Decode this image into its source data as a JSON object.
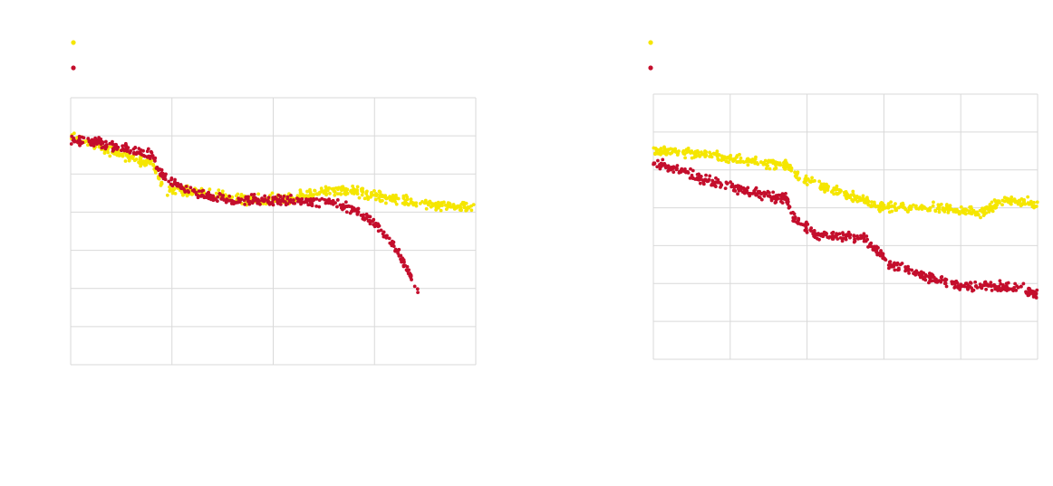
{
  "chart_data": [
    {
      "type": "scatter",
      "title": "",
      "xlabel": "",
      "ylabel": "",
      "xlim": [
        0,
        100
      ],
      "ylim": [
        0,
        7
      ],
      "x_gridlines": 4,
      "y_gridlines": 7,
      "grid": true,
      "legend": "top-left",
      "series": [
        {
          "name": "",
          "color": "#f5e600",
          "key_points": [
            [
              0,
              6.0
            ],
            [
              10,
              5.6
            ],
            [
              20,
              5.25
            ],
            [
              23,
              4.6
            ],
            [
              30,
              4.55
            ],
            [
              45,
              4.3
            ],
            [
              55,
              4.4
            ],
            [
              67,
              4.6
            ],
            [
              85,
              4.25
            ],
            [
              100,
              4.1
            ]
          ]
        },
        {
          "name": "",
          "color": "#c40e2c",
          "key_points": [
            [
              0,
              5.9
            ],
            [
              8,
              5.8
            ],
            [
              20,
              5.5
            ],
            [
              22,
              5.0
            ],
            [
              30,
              4.5
            ],
            [
              40,
              4.3
            ],
            [
              55,
              4.3
            ],
            [
              65,
              4.25
            ],
            [
              72,
              3.95
            ],
            [
              76,
              3.6
            ],
            [
              80,
              3.1
            ],
            [
              86,
              1.9
            ]
          ]
        }
      ]
    },
    {
      "type": "scatter",
      "title": "",
      "xlabel": "",
      "ylabel": "",
      "xlim": [
        0,
        100
      ],
      "ylim": [
        0,
        7
      ],
      "x_gridlines": 5,
      "y_gridlines": 7,
      "grid": true,
      "legend": "top-left",
      "series": [
        {
          "name": "",
          "color": "#f5e600",
          "key_points": [
            [
              0,
              5.5
            ],
            [
              10,
              5.45
            ],
            [
              20,
              5.3
            ],
            [
              35,
              5.1
            ],
            [
              38,
              4.8
            ],
            [
              45,
              4.5
            ],
            [
              55,
              4.2
            ],
            [
              60,
              4.0
            ],
            [
              75,
              4.0
            ],
            [
              85,
              3.9
            ],
            [
              92,
              4.2
            ],
            [
              100,
              4.1
            ]
          ]
        },
        {
          "name": "",
          "color": "#c40e2c",
          "key_points": [
            [
              0,
              5.2
            ],
            [
              15,
              4.7
            ],
            [
              30,
              4.3
            ],
            [
              35,
              4.2
            ],
            [
              36,
              3.8
            ],
            [
              42,
              3.3
            ],
            [
              55,
              3.2
            ],
            [
              58,
              2.9
            ],
            [
              62,
              2.5
            ],
            [
              70,
              2.2
            ],
            [
              80,
              1.95
            ],
            [
              95,
              1.9
            ],
            [
              100,
              1.7
            ]
          ]
        }
      ]
    }
  ]
}
